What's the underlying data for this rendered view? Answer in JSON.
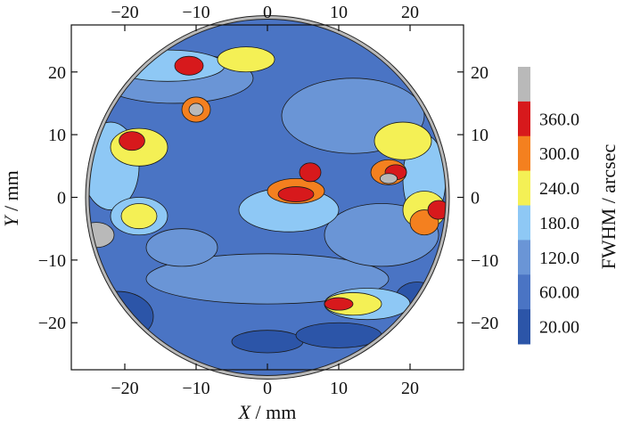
{
  "chart_data": {
    "type": "heatmap",
    "title": "",
    "xlabel": {
      "var": "X",
      "unit": " / mm"
    },
    "ylabel": {
      "var": "Y",
      "unit": " / mm"
    },
    "xlim": [
      -27.5,
      27.5
    ],
    "ylim": [
      -27.5,
      27.5
    ],
    "x_ticks": [
      -20,
      -10,
      0,
      10,
      20
    ],
    "y_ticks": [
      -20,
      -10,
      0,
      10,
      20
    ],
    "x_tick_labels": [
      "−20",
      "−10",
      "0",
      "10",
      "20"
    ],
    "y_tick_labels": [
      "−20",
      "−10",
      "0",
      "10",
      "20"
    ],
    "y_tick_labels_right": [
      "−20",
      "−10",
      "0",
      "10",
      "20"
    ],
    "grid": false,
    "colorbar": {
      "title": "FWHM / arcsec",
      "levels": [
        {
          "label": "",
          "color": "#b9b9b9"
        },
        {
          "label": "360.0",
          "color": "#d7191c"
        },
        {
          "label": "300.0",
          "color": "#f4801f"
        },
        {
          "label": "240.0",
          "color": "#f4f055"
        },
        {
          "label": "180.0",
          "color": "#8ec8f5"
        },
        {
          "label": "120.0",
          "color": "#6a95d6"
        },
        {
          "label": "60.00",
          "color": "#4a74c4"
        },
        {
          "label": "20.00",
          "color": "#2c55a8"
        }
      ]
    },
    "map": {
      "radius_mm": 25,
      "background_level": "60.00",
      "regions": [
        {
          "level": "20.00",
          "cx": -21,
          "cy": -19,
          "rx": 5,
          "ry": 4
        },
        {
          "level": "20.00",
          "cx": 0,
          "cy": -23,
          "rx": 5,
          "ry": 1.8
        },
        {
          "level": "20.00",
          "cx": 10,
          "cy": -22,
          "rx": 6,
          "ry": 2
        },
        {
          "level": "20.00",
          "cx": 21,
          "cy": -16,
          "rx": 3,
          "ry": 2.5
        },
        {
          "level": "120.0",
          "cx": 0,
          "cy": -13,
          "rx": 17,
          "ry": 4
        },
        {
          "level": "120.0",
          "cx": 12,
          "cy": 13,
          "rx": 10,
          "ry": 6
        },
        {
          "level": "120.0",
          "cx": -13,
          "cy": 19,
          "rx": 11,
          "ry": 4
        },
        {
          "level": "120.0",
          "cx": 16,
          "cy": -6,
          "rx": 8,
          "ry": 5
        },
        {
          "level": "120.0",
          "cx": -12,
          "cy": -8,
          "rx": 5,
          "ry": 3
        },
        {
          "level": "180.0",
          "cx": -22,
          "cy": 5,
          "rx": 4,
          "ry": 7
        },
        {
          "level": "180.0",
          "cx": 22,
          "cy": 3,
          "rx": 3,
          "ry": 7
        },
        {
          "level": "180.0",
          "cx": 3,
          "cy": -2,
          "rx": 7,
          "ry": 3.5
        },
        {
          "level": "180.0",
          "cx": 14,
          "cy": -17,
          "rx": 6,
          "ry": 2.5
        },
        {
          "level": "180.0",
          "cx": -14,
          "cy": 21,
          "rx": 8,
          "ry": 2.5
        },
        {
          "level": "180.0",
          "cx": -18,
          "cy": -3,
          "rx": 4,
          "ry": 3
        },
        {
          "level": "240.0",
          "cx": -18,
          "cy": 8,
          "rx": 4,
          "ry": 3
        },
        {
          "level": "240.0",
          "cx": 19,
          "cy": 9,
          "rx": 4,
          "ry": 3
        },
        {
          "level": "240.0",
          "cx": 22,
          "cy": -2,
          "rx": 3,
          "ry": 3
        },
        {
          "level": "240.0",
          "cx": 12,
          "cy": -17,
          "rx": 4,
          "ry": 1.8
        },
        {
          "level": "240.0",
          "cx": -3,
          "cy": 22,
          "rx": 4,
          "ry": 2
        },
        {
          "level": "240.0",
          "cx": -18,
          "cy": -3,
          "rx": 2.5,
          "ry": 2
        },
        {
          "level": "300.0",
          "cx": 4,
          "cy": 1,
          "rx": 4,
          "ry": 2
        },
        {
          "level": "300.0",
          "cx": 22,
          "cy": -4,
          "rx": 2,
          "ry": 2
        },
        {
          "level": "300.0",
          "cx": -10,
          "cy": 14,
          "rx": 2,
          "ry": 2
        },
        {
          "level": "300.0",
          "cx": 17,
          "cy": 4,
          "rx": 2.5,
          "ry": 2
        },
        {
          "level": "360.0",
          "cx": 4,
          "cy": 0.5,
          "rx": 2.5,
          "ry": 1.2
        },
        {
          "level": "360.0",
          "cx": -11,
          "cy": 21,
          "rx": 2,
          "ry": 1.5
        },
        {
          "level": "360.0",
          "cx": -19,
          "cy": 9,
          "rx": 1.8,
          "ry": 1.5
        },
        {
          "level": "360.0",
          "cx": 24,
          "cy": -2,
          "rx": 1.5,
          "ry": 1.5
        },
        {
          "level": "360.0",
          "cx": 6,
          "cy": 4,
          "rx": 1.5,
          "ry": 1.5
        },
        {
          "level": "360.0",
          "cx": 18,
          "cy": 4,
          "rx": 1.5,
          "ry": 1.2
        },
        {
          "level": "360.0",
          "cx": 10,
          "cy": -17,
          "rx": 2,
          "ry": 1
        },
        {
          "level": "",
          "cx": -10,
          "cy": 14,
          "rx": 1,
          "ry": 1
        },
        {
          "level": "",
          "cx": 17,
          "cy": 3,
          "rx": 1.2,
          "ry": 0.8
        },
        {
          "level": "",
          "cx": -24,
          "cy": -6,
          "rx": 2.5,
          "ry": 2
        }
      ]
    }
  }
}
